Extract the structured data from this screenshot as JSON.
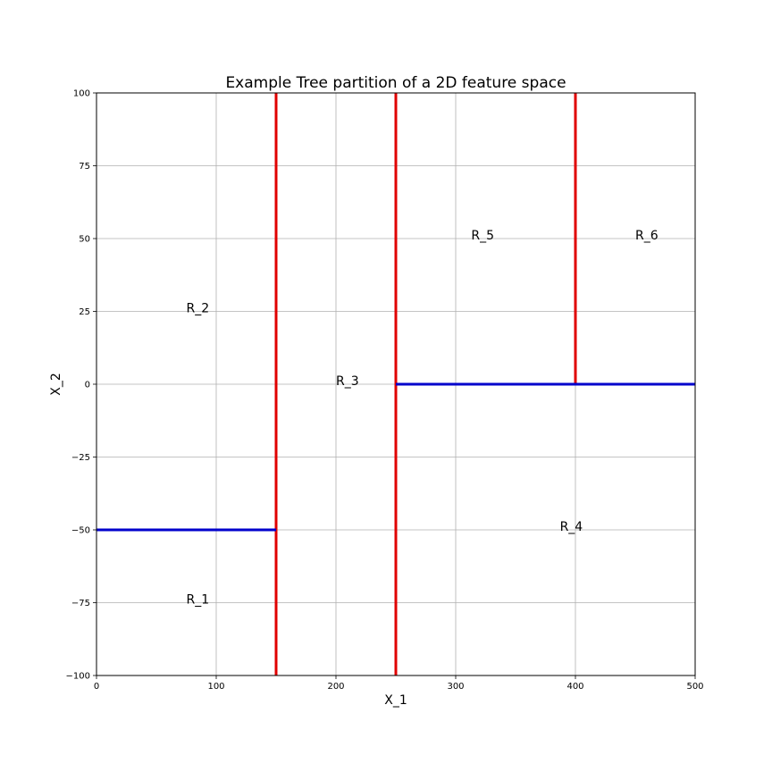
{
  "chart_data": {
    "type": "line",
    "title": "Example Tree partition of a 2D feature space",
    "xlabel": "X_1",
    "ylabel": "X_2",
    "xlim": [
      0,
      500
    ],
    "ylim": [
      -100,
      100
    ],
    "grid": true,
    "x_ticks": [
      0,
      100,
      200,
      300,
      400,
      500
    ],
    "y_ticks": [
      -100,
      -75,
      -50,
      -25,
      0,
      25,
      50,
      75,
      100
    ],
    "x_tick_labels": [
      "0",
      "100",
      "200",
      "300",
      "400",
      "500"
    ],
    "y_tick_labels": [
      "−100",
      "−75",
      "−50",
      "−25",
      "0",
      "25",
      "50",
      "75",
      "100"
    ],
    "splits": [
      {
        "orientation": "vertical",
        "x": 150,
        "y": [
          -100,
          100
        ],
        "color": "#e00000"
      },
      {
        "orientation": "vertical",
        "x": 250,
        "y": [
          -100,
          100
        ],
        "color": "#e00000"
      },
      {
        "orientation": "vertical",
        "x": 400,
        "y": [
          0,
          100
        ],
        "color": "#e00000"
      },
      {
        "orientation": "horizontal",
        "y": -50,
        "x": [
          0,
          150
        ],
        "color": "#0000cc"
      },
      {
        "orientation": "horizontal",
        "y": 0,
        "x": [
          250,
          500
        ],
        "color": "#0000cc"
      }
    ],
    "regions": [
      {
        "label": "R_1",
        "x": 75,
        "y": -75
      },
      {
        "label": "R_2",
        "x": 75,
        "y": 25
      },
      {
        "label": "R_3",
        "x": 200,
        "y": 0
      },
      {
        "label": "R_4",
        "x": 387,
        "y": -50
      },
      {
        "label": "R_5",
        "x": 313,
        "y": 50
      },
      {
        "label": "R_6",
        "x": 450,
        "y": 50
      }
    ]
  }
}
